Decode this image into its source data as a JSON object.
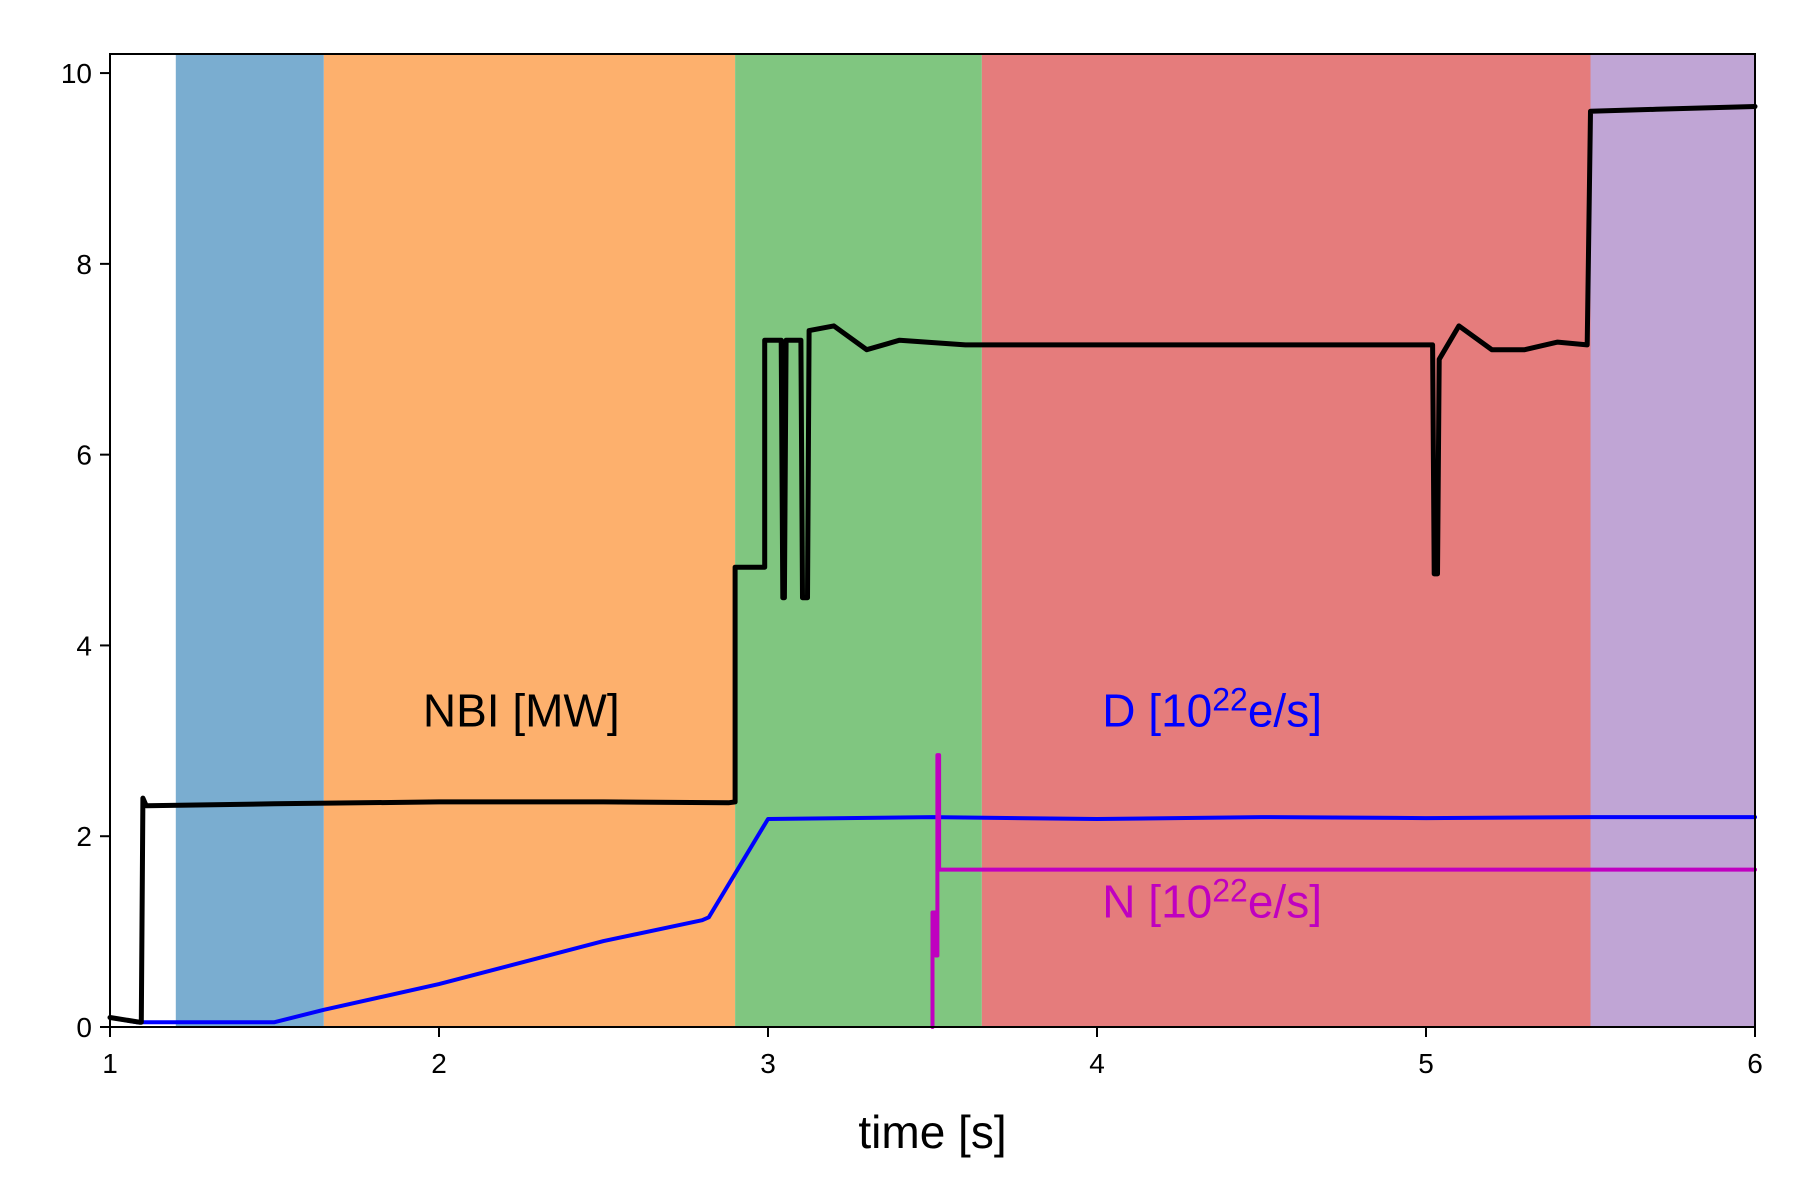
{
  "chart_data": {
    "type": "line",
    "title": "",
    "xlabel": "time [s]",
    "ylabel": "",
    "xlim": [
      1,
      6
    ],
    "ylim": [
      0,
      10.2
    ],
    "xticks": [
      "1",
      "2",
      "3",
      "4",
      "5",
      "6"
    ],
    "yticks": [
      "0",
      "2",
      "4",
      "6",
      "8",
      "10"
    ],
    "grid": false,
    "background_bands": [
      {
        "x": [
          1.2,
          1.65
        ],
        "color": "#7aadd0"
      },
      {
        "x": [
          1.65,
          2.9
        ],
        "color": "#fdb06d"
      },
      {
        "x": [
          2.9,
          3.65
        ],
        "color": "#80c680"
      },
      {
        "x": [
          3.65,
          5.5
        ],
        "color": "#e57c7c"
      },
      {
        "x": [
          5.5,
          6.0
        ],
        "color": "#c0a5d5"
      }
    ],
    "series": [
      {
        "name": "NBI [MW]",
        "color": "#000000",
        "points": [
          [
            1.0,
            0.1
          ],
          [
            1.09,
            0.05
          ],
          [
            1.095,
            0.05
          ],
          [
            1.1,
            2.4
          ],
          [
            1.11,
            2.32
          ],
          [
            1.5,
            2.34
          ],
          [
            2.0,
            2.36
          ],
          [
            2.5,
            2.36
          ],
          [
            2.88,
            2.35
          ],
          [
            2.9,
            2.36
          ],
          [
            2.9,
            4.82
          ],
          [
            2.99,
            4.82
          ],
          [
            2.99,
            7.2
          ],
          [
            3.04,
            7.2
          ],
          [
            3.045,
            4.5
          ],
          [
            3.05,
            4.5
          ],
          [
            3.055,
            7.2
          ],
          [
            3.1,
            7.2
          ],
          [
            3.105,
            4.5
          ],
          [
            3.12,
            4.5
          ],
          [
            3.125,
            7.3
          ],
          [
            3.2,
            7.35
          ],
          [
            3.3,
            7.1
          ],
          [
            3.4,
            7.2
          ],
          [
            3.6,
            7.15
          ],
          [
            4.0,
            7.15
          ],
          [
            4.5,
            7.15
          ],
          [
            5.0,
            7.15
          ],
          [
            5.02,
            7.15
          ],
          [
            5.025,
            4.75
          ],
          [
            5.035,
            4.75
          ],
          [
            5.04,
            7.0
          ],
          [
            5.1,
            7.35
          ],
          [
            5.2,
            7.1
          ],
          [
            5.3,
            7.1
          ],
          [
            5.4,
            7.18
          ],
          [
            5.49,
            7.15
          ],
          [
            5.5,
            9.6
          ],
          [
            5.7,
            9.62
          ],
          [
            6.0,
            9.65
          ]
        ]
      },
      {
        "name": "D",
        "unit_prefix": "[10",
        "unit_exp": "22",
        "unit_suffix": "e/s]",
        "color": "#0000ff",
        "points": [
          [
            1.0,
            0.1
          ],
          [
            1.08,
            0.05
          ],
          [
            1.5,
            0.05
          ],
          [
            1.65,
            0.18
          ],
          [
            2.0,
            0.45
          ],
          [
            2.5,
            0.9
          ],
          [
            2.8,
            1.12
          ],
          [
            2.82,
            1.15
          ],
          [
            3.0,
            2.18
          ],
          [
            3.5,
            2.2
          ],
          [
            4.0,
            2.18
          ],
          [
            4.5,
            2.2
          ],
          [
            5.0,
            2.19
          ],
          [
            5.5,
            2.2
          ],
          [
            6.0,
            2.2
          ]
        ]
      },
      {
        "name": "N",
        "unit_prefix": "[10",
        "unit_exp": "22",
        "unit_suffix": "e/s]",
        "color": "#c000c0",
        "points": [
          [
            3.5,
            0.0
          ],
          [
            3.5,
            1.2
          ],
          [
            3.51,
            1.2
          ],
          [
            3.51,
            0.75
          ],
          [
            3.515,
            0.75
          ],
          [
            3.515,
            2.85
          ],
          [
            3.52,
            2.85
          ],
          [
            3.52,
            1.65
          ],
          [
            3.6,
            1.65
          ],
          [
            4.0,
            1.65
          ],
          [
            5.0,
            1.65
          ],
          [
            6.0,
            1.65
          ]
        ]
      }
    ],
    "annotations": [
      {
        "series": 0,
        "x": 2.25,
        "y": 3.15
      },
      {
        "series": 1,
        "x": 4.35,
        "y": 3.15
      },
      {
        "series": 2,
        "x": 4.35,
        "y": 1.15
      }
    ]
  }
}
